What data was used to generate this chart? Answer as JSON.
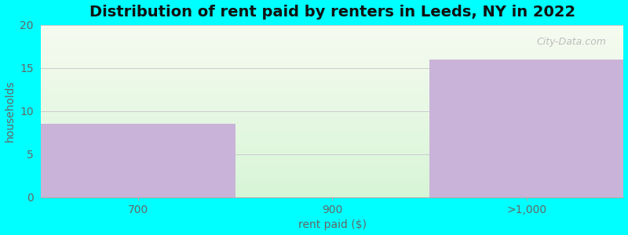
{
  "categories": [
    "700",
    "900",
    ">1,000"
  ],
  "values": [
    8.5,
    0,
    16
  ],
  "bar_color": "#c9b3d9",
  "title": "Distribution of rent paid by renters in Leeds, NY in 2022",
  "xlabel": "rent paid ($)",
  "ylabel": "households",
  "ylim": [
    0,
    20
  ],
  "yticks": [
    0,
    5,
    10,
    15,
    20
  ],
  "title_fontsize": 14,
  "label_fontsize": 10,
  "tick_fontsize": 10,
  "background_outer": "#00FFFF",
  "plot_bg_color_top": "#f5faf0",
  "plot_bg_color_bottom": "#d8f5ec",
  "watermark_text": "City-Data.com",
  "bar_positions": [
    0,
    1,
    2
  ],
  "bar_lefts": [
    -0.5,
    0.5,
    1.5
  ],
  "bar_width": 1.0
}
